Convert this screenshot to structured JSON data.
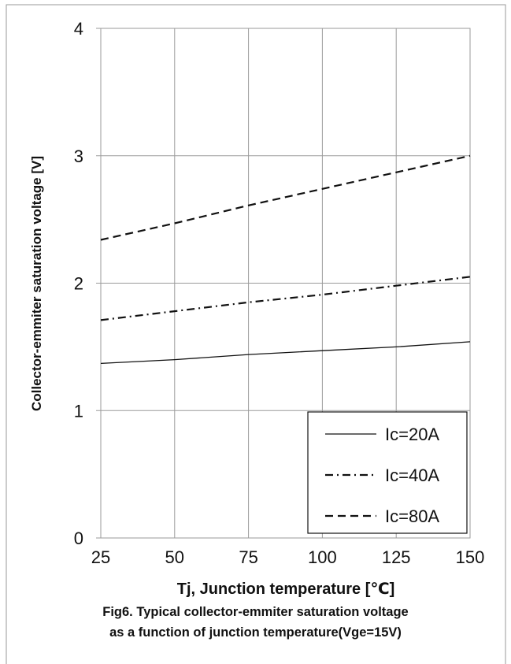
{
  "chart_data": {
    "type": "line",
    "xlabel": "Tj, Junction temperature [℃]",
    "ylabel": "Collector-emmiter saturation voltage [V]",
    "xlim": [
      25,
      150
    ],
    "ylim": [
      0,
      4
    ],
    "x_ticks": [
      "25",
      "50",
      "75",
      "100",
      "125",
      "150"
    ],
    "y_ticks": [
      "0",
      "1",
      "2",
      "3",
      "4"
    ],
    "grid": true,
    "legend_position": "bottom-right",
    "series": [
      {
        "name": "Ic=20A",
        "line_style": "solid",
        "x": [
          25,
          50,
          75,
          100,
          125,
          150
        ],
        "y": [
          1.37,
          1.4,
          1.44,
          1.47,
          1.5,
          1.54
        ]
      },
      {
        "name": "Ic=40A",
        "line_style": "dash-dot",
        "x": [
          25,
          50,
          75,
          100,
          125,
          150
        ],
        "y": [
          1.71,
          1.78,
          1.85,
          1.91,
          1.98,
          2.05
        ]
      },
      {
        "name": "Ic=80A",
        "line_style": "dashed",
        "x": [
          25,
          50,
          75,
          100,
          125,
          150
        ],
        "y": [
          2.34,
          2.47,
          2.61,
          2.74,
          2.87,
          3.0
        ]
      }
    ]
  },
  "caption": {
    "line1": "Fig6. Typical collector-emmiter saturation voltage",
    "line2": "as a function of junction temperature(Vge=15V)"
  },
  "colors": {
    "frame": "#9a9a9a",
    "grid": "#9a9a9a",
    "line": "#111111",
    "text": "#111111"
  }
}
